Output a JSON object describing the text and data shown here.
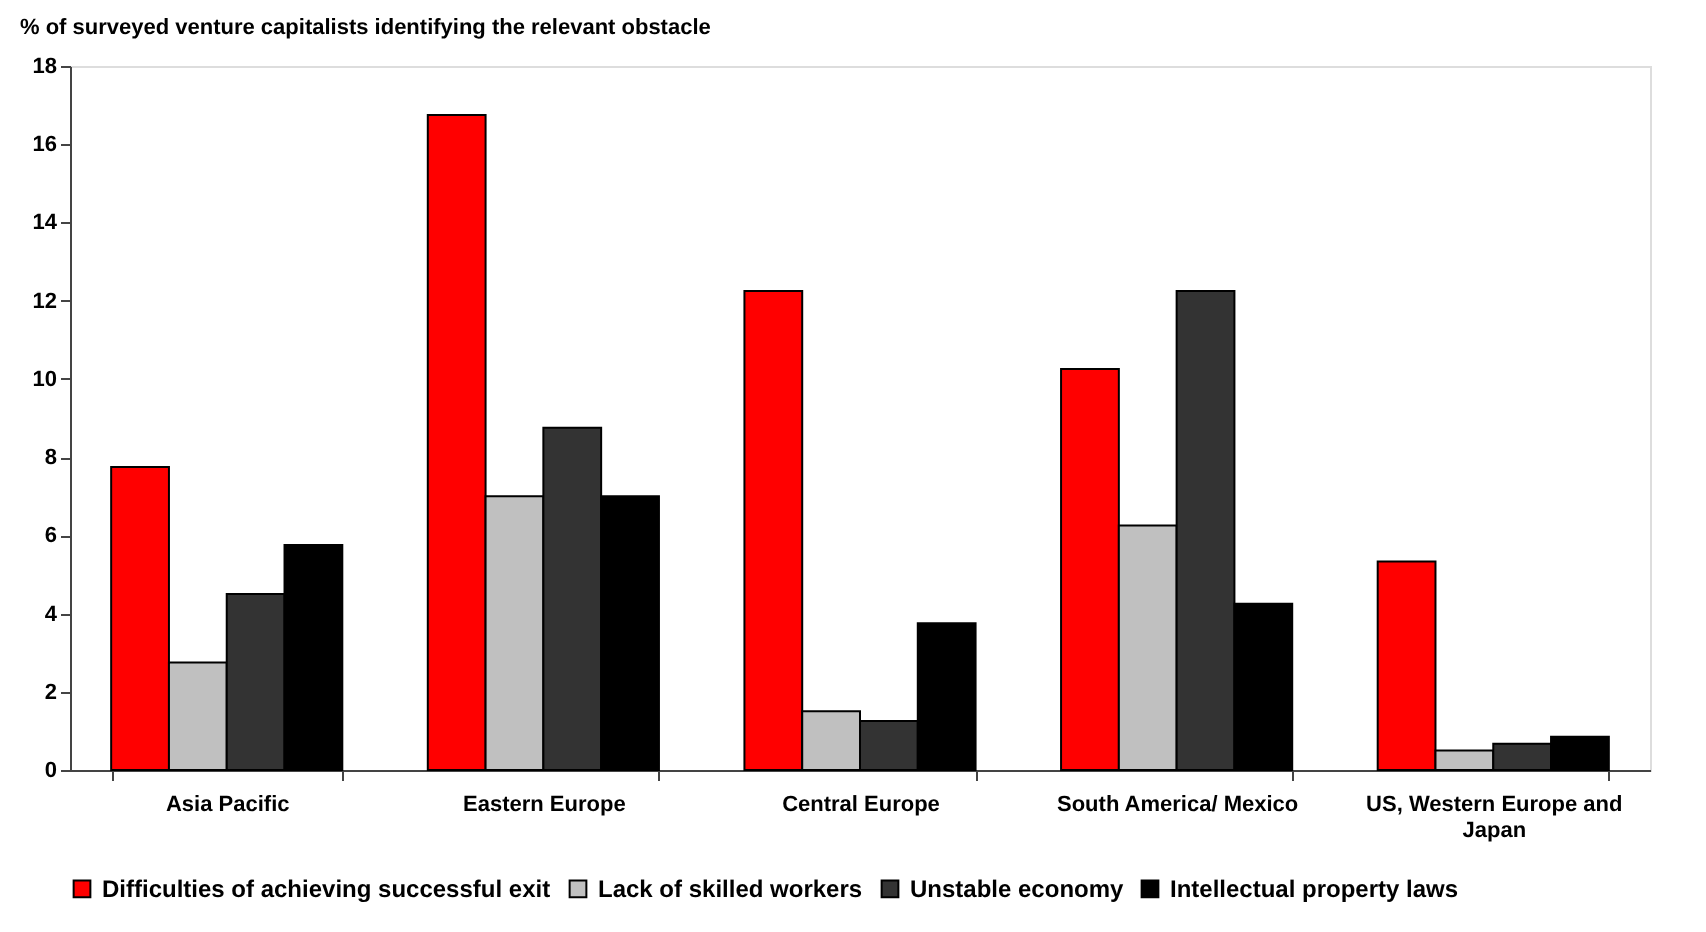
{
  "chart_data": {
    "type": "bar",
    "title": "% of surveyed venture capitalists identifying the relevant obstacle",
    "categories": [
      "Asia Pacific",
      "Eastern Europe",
      "Central Europe",
      "South America/ Mexico",
      "US, Western Europe and Japan"
    ],
    "series": [
      {
        "name": "Difficulties of achieving successful exit",
        "color": "#ff0000",
        "values": [
          7.75,
          16.75,
          12.25,
          10.25,
          5.33
        ]
      },
      {
        "name": "Lack of skilled workers",
        "color": "#c0c0c0",
        "values": [
          2.75,
          7.0,
          1.5,
          6.25,
          0.5
        ]
      },
      {
        "name": "Unstable economy",
        "color": "#333333",
        "values": [
          4.5,
          8.75,
          1.25,
          12.25,
          0.67
        ]
      },
      {
        "name": "Intellectual property laws",
        "color": "#000000",
        "values": [
          5.75,
          7.0,
          3.75,
          4.25,
          0.85
        ]
      }
    ],
    "ylim": [
      0,
      18
    ],
    "yticks": [
      0,
      2,
      4,
      6,
      8,
      10,
      12,
      14,
      16,
      18
    ],
    "grid": false,
    "legend": "bottom"
  }
}
